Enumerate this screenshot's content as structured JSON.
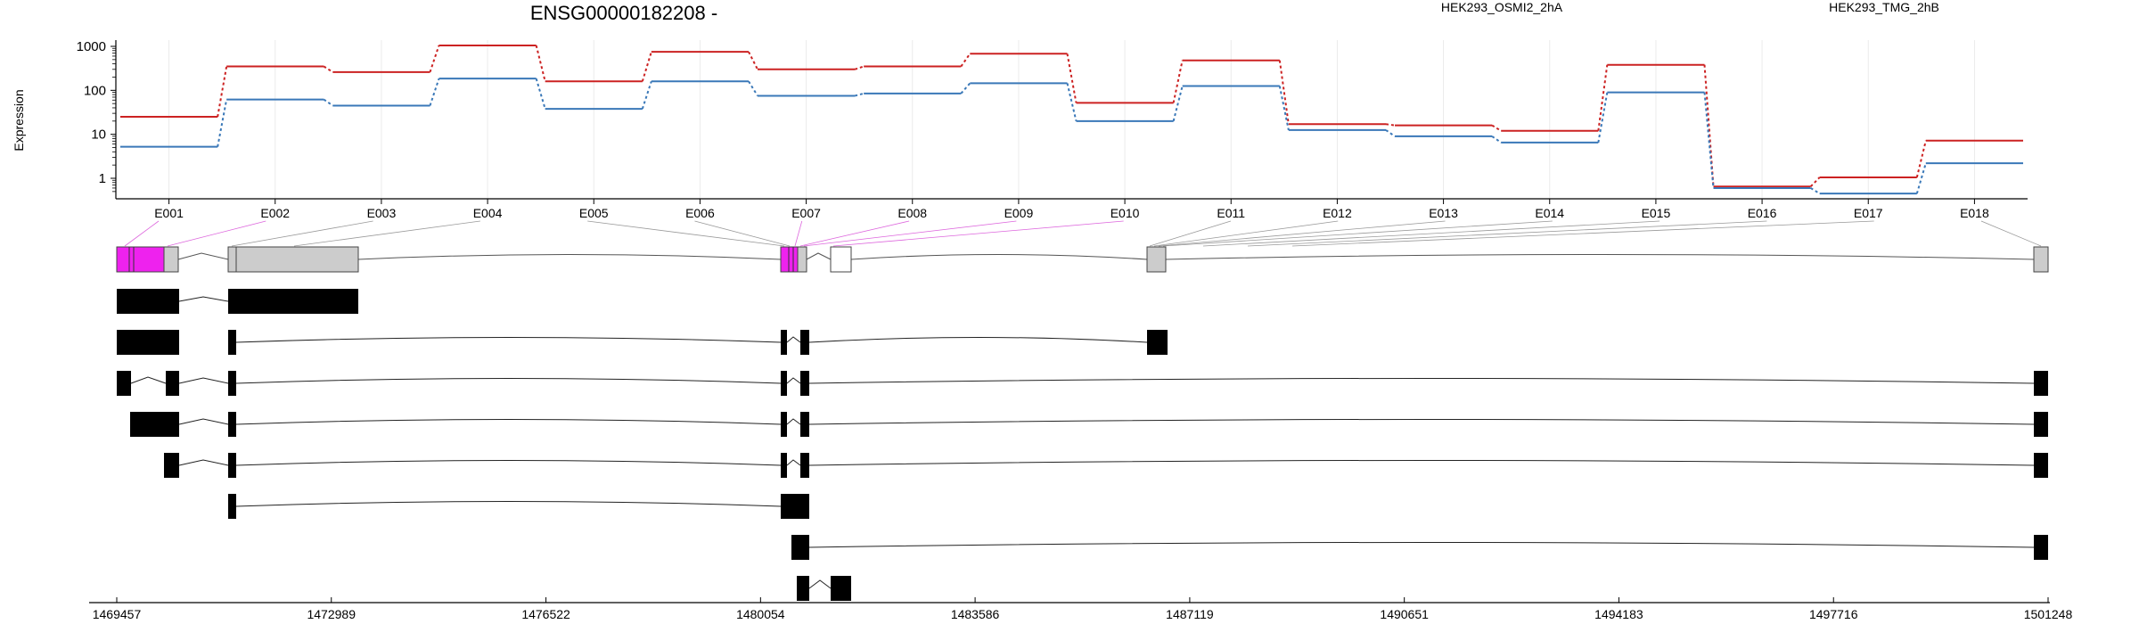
{
  "chart_data": {
    "type": "line",
    "title": "ENSG00000182208 -",
    "ylabel": "Expression",
    "y_scale": "log",
    "y_ticks": [
      1,
      10,
      100,
      1000
    ],
    "y_tick_labels": [
      "1",
      "10",
      "100",
      "1000"
    ],
    "categories": [
      "E001",
      "E002",
      "E003",
      "E004",
      "E005",
      "E006",
      "E007",
      "E008",
      "E009",
      "E010",
      "E011",
      "E012",
      "E013",
      "E014",
      "E015",
      "E016",
      "E017",
      "E018"
    ],
    "series": [
      {
        "name": "HEK293_OSMI2_2hA",
        "color": "#cc2222",
        "values": [
          25,
          350,
          260,
          1050,
          160,
          750,
          300,
          350,
          680,
          52,
          480,
          17,
          16,
          12,
          380,
          0.65,
          1.05,
          7.2
        ]
      },
      {
        "name": "HEK293_TMG_2hB",
        "color": "#3a78b8",
        "values": [
          5.2,
          62,
          45,
          185,
          38,
          160,
          75,
          85,
          145,
          20,
          125,
          12.5,
          9,
          6.5,
          90,
          0.6,
          0.45,
          2.2
        ]
      }
    ],
    "grid": true,
    "legend": "top",
    "exon_coloring": {
      "highlight_color": "#ee22ee",
      "highlighted_exons": [
        "E001",
        "E007"
      ],
      "default_color": "#cccccc"
    },
    "transcript_count": 8,
    "genome_axis": {
      "start": 1469457,
      "end": 1501248,
      "tick_values": [
        1469457,
        1472989,
        1476522,
        1480054,
        1483586,
        1487119,
        1490651,
        1494183,
        1497716,
        1501248
      ],
      "tick_labels": [
        "1469457",
        "1472989",
        "1476522",
        "1480054",
        "1483586",
        "1487119",
        "1490651",
        "1494183",
        "1497716",
        "1501248"
      ]
    }
  }
}
